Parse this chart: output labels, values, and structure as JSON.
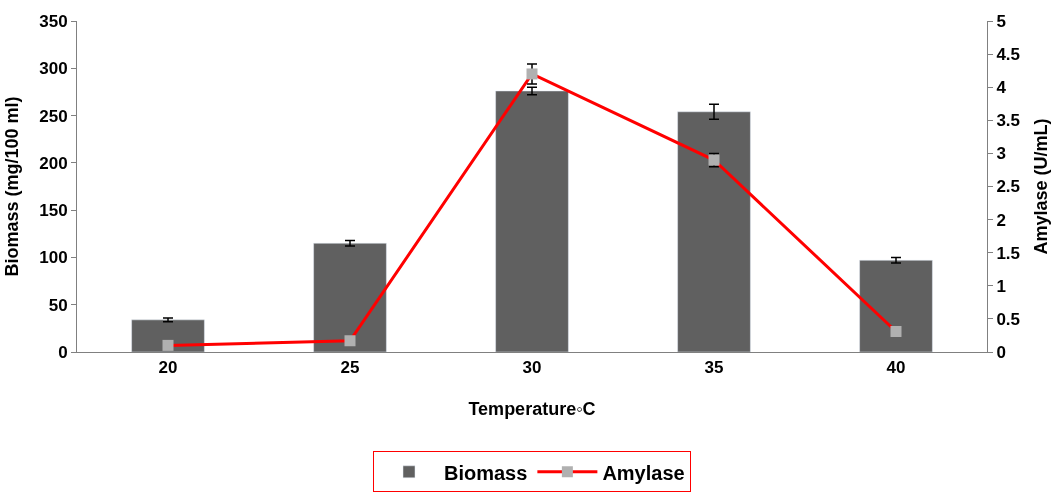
{
  "chart_data": {
    "type": "bar",
    "xlabel": "Temperature◦C",
    "ylabel": "Biomass (mg/100 ml)",
    "y2label": "Amylase (U/mL)",
    "categories": [
      "20",
      "25",
      "30",
      "35",
      "40"
    ],
    "series": [
      {
        "name": "Biomass",
        "color": "#606060",
        "values": [
          34,
          115,
          276,
          254,
          97
        ],
        "errors": [
          2,
          3,
          4,
          8,
          3
        ]
      },
      {
        "name": "Amylase",
        "type": "line",
        "axis": "y2",
        "color": "#ff0000",
        "marker": "square",
        "values": [
          0.1,
          0.17,
          4.2,
          2.9,
          0.31
        ],
        "errors": [
          null,
          null,
          0.15,
          0.1,
          null
        ]
      }
    ],
    "ylim": [
      0,
      350
    ],
    "yticks": [
      0,
      50,
      100,
      150,
      200,
      250,
      300,
      350
    ],
    "y2lim": [
      0,
      5
    ],
    "y2ticks": [
      0,
      0.5,
      1,
      1.5,
      2,
      2.5,
      3,
      3.5,
      4,
      4.5,
      5
    ],
    "legend": "bottom"
  }
}
